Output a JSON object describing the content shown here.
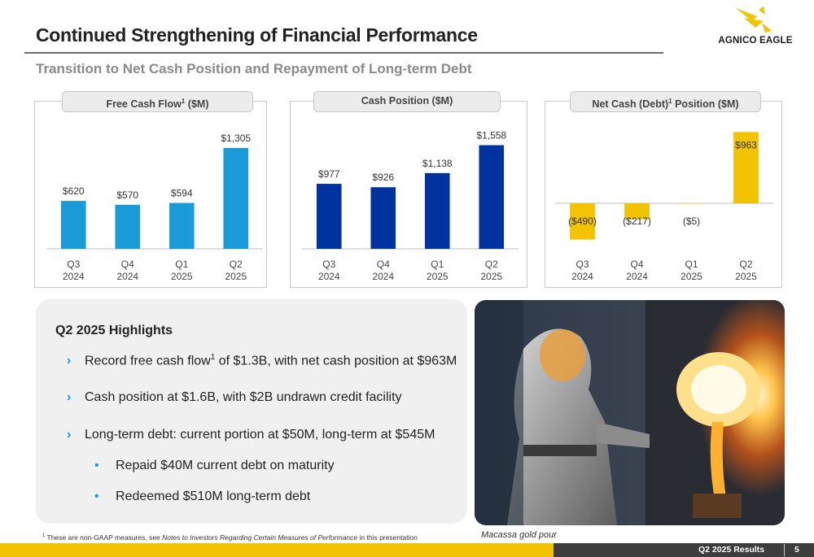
{
  "page": {
    "title": "Continued Strengthening of Financial Performance",
    "subtitle": "Transition to Net Cash Position and Repayment of Long-term Debt"
  },
  "logo": {
    "text": "AGNICO EAGLE"
  },
  "charts": {
    "fcf": {
      "tab_title": "Free Cash Flow",
      "tab_sup": "1",
      "tab_unit": " ($M)"
    },
    "cash": {
      "tab_title": "Cash Position ($M)"
    },
    "net": {
      "tab_title": "Net Cash (Debt)",
      "tab_sup": "1",
      "tab_unit": " Position ($M)"
    }
  },
  "chart_data": [
    {
      "type": "bar",
      "title": "Free Cash Flow1 ($M)",
      "categories": [
        "Q3 2024",
        "Q4 2024",
        "Q1 2025",
        "Q2 2025"
      ],
      "values": [
        620,
        570,
        594,
        1305
      ],
      "labels": [
        "$620",
        "$570",
        "$594",
        "$1,305"
      ],
      "color": "#1a9ad6",
      "ylim": [
        0,
        1400
      ]
    },
    {
      "type": "bar",
      "title": "Cash Position ($M)",
      "categories": [
        "Q3 2024",
        "Q4 2024",
        "Q1 2025",
        "Q2 2025"
      ],
      "values": [
        977,
        926,
        1138,
        1558
      ],
      "labels": [
        "$977",
        "$926",
        "$1,138",
        "$1,558"
      ],
      "color": "#0033a0",
      "ylim": [
        0,
        1650
      ]
    },
    {
      "type": "bar",
      "title": "Net Cash (Debt)1 Position ($M)",
      "categories": [
        "Q3 2024",
        "Q4 2024",
        "Q1 2025",
        "Q2 2025"
      ],
      "values": [
        -490,
        -217,
        -5,
        963
      ],
      "labels": [
        "($490)",
        "($217)",
        "($5)",
        "$963"
      ],
      "color": "#f2c300",
      "ylim": [
        -560,
        1000
      ]
    }
  ],
  "highlights": {
    "title": "Q2 2025 Highlights",
    "items": [
      {
        "pre": "Record free cash flow",
        "sup": "1",
        "post": " of $1.3B, with net cash position at $963M"
      },
      {
        "text": "Cash position at $1.6B, with $2B undrawn credit facility"
      },
      {
        "text": "Long-term debt: current portion at $50M, long-term at $545M"
      }
    ],
    "subitems": [
      "Repaid $40M current debt on maturity",
      "Redeemed $510M long-term debt"
    ],
    "chevron": "›",
    "bullet": "•"
  },
  "photo": {
    "caption": "Macassa gold pour"
  },
  "footnote": {
    "sup": "1",
    "pre": " These are non-GAAP measures, see ",
    "italic": "Notes to Investors Regarding Certain Measures of Performance",
    "post": " in this presentation"
  },
  "footer": {
    "label": "Q2 2025 Results",
    "page": "5"
  }
}
